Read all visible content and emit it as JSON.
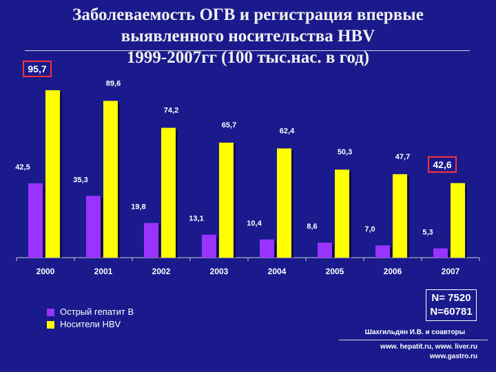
{
  "title": {
    "line1": "Заболеваемость ОГВ и регистрация впервые",
    "line2": "выявленного носительства HBV",
    "line3": "1999-2007гг (100 тыс.нас. в год)"
  },
  "chart_data": {
    "type": "bar",
    "categories": [
      "2000",
      "2001",
      "2002",
      "2003",
      "2004",
      "2005",
      "2006",
      "2007"
    ],
    "series": [
      {
        "name": "Острый гепатит В",
        "color": "#9933ff",
        "values": [
          42.5,
          35.3,
          19.8,
          13.1,
          10.4,
          8.6,
          7.0,
          5.3
        ],
        "labels": [
          "42,5",
          "35,3",
          "19,8",
          "13,1",
          "10,4",
          "8,6",
          "7,0",
          "5,3"
        ]
      },
      {
        "name": "Носители HBV",
        "color": "#ffff00",
        "values": [
          95.7,
          89.6,
          74.2,
          65.7,
          62.4,
          50.3,
          47.7,
          42.6
        ],
        "labels": [
          "95,7",
          "89,6",
          "74,2",
          "65,7",
          "62,4",
          "50,3",
          "47,7",
          "42,6"
        ]
      }
    ],
    "highlighted_labels": [
      "95,7",
      "42,6"
    ],
    "highlight_color": "#ff3333",
    "ylim": [
      0,
      100
    ],
    "grid": false,
    "legend_position": "bottom-left"
  },
  "legend": {
    "items": [
      {
        "label": "Острый гепатит В",
        "color": "#9933ff"
      },
      {
        "label": "Носители HBV",
        "color": "#ffff00"
      }
    ]
  },
  "totals": {
    "line1": "N= 7520",
    "line2": "N=60781"
  },
  "authors": "Шахгильдян И.В. и соавторы",
  "links": {
    "line1": "www. hepatit.ru, www. liver.ru",
    "line2": "www.gastro.ru"
  },
  "colors": {
    "background": "#1a1a8c",
    "text": "#ffffff"
  }
}
